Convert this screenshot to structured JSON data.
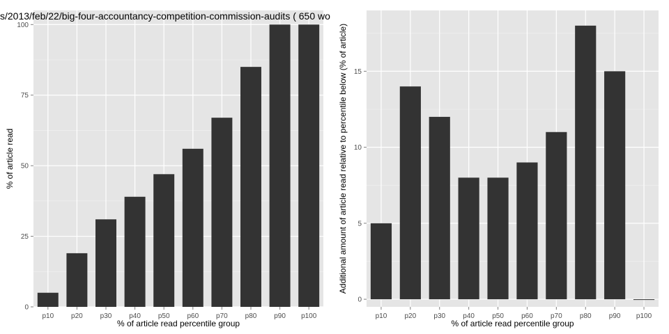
{
  "chart_data": [
    {
      "type": "bar",
      "title": "s/2013/feb/22/big-four-accountancy-competition-commission-audits ( 650 wo",
      "xlabel": "% of article read percentile group",
      "ylabel": "% of article read",
      "categories": [
        "p10",
        "p20",
        "p30",
        "p40",
        "p50",
        "p60",
        "p70",
        "p80",
        "p90",
        "p100"
      ],
      "values": [
        5,
        19,
        31,
        39,
        47,
        56,
        67,
        85,
        100,
        100
      ],
      "ylim": [
        0,
        105
      ],
      "yticks": [
        0,
        25,
        50,
        75,
        100
      ],
      "ytick_labels": [
        "0",
        "25",
        "50",
        "75",
        "100"
      ],
      "grid": true,
      "colors": {
        "panel": "#e5e5e5",
        "grid": "#ffffff",
        "bar": "#333333"
      }
    },
    {
      "type": "bar",
      "title": "",
      "xlabel": "% of article read percentile group",
      "ylabel": "Additional amount of article read relative to percentile below (% of article)",
      "categories": [
        "p10",
        "p20",
        "p30",
        "p40",
        "p50",
        "p60",
        "p70",
        "p80",
        "p90",
        "p100"
      ],
      "values": [
        5,
        14,
        12,
        8,
        8,
        9,
        11,
        18,
        15,
        0
      ],
      "ylim": [
        -0.5,
        19
      ],
      "yticks": [
        0,
        5,
        10,
        15
      ],
      "ytick_labels": [
        "0",
        "5",
        "10",
        "15"
      ],
      "grid": true,
      "colors": {
        "panel": "#e5e5e5",
        "grid": "#ffffff",
        "bar": "#333333"
      }
    }
  ]
}
